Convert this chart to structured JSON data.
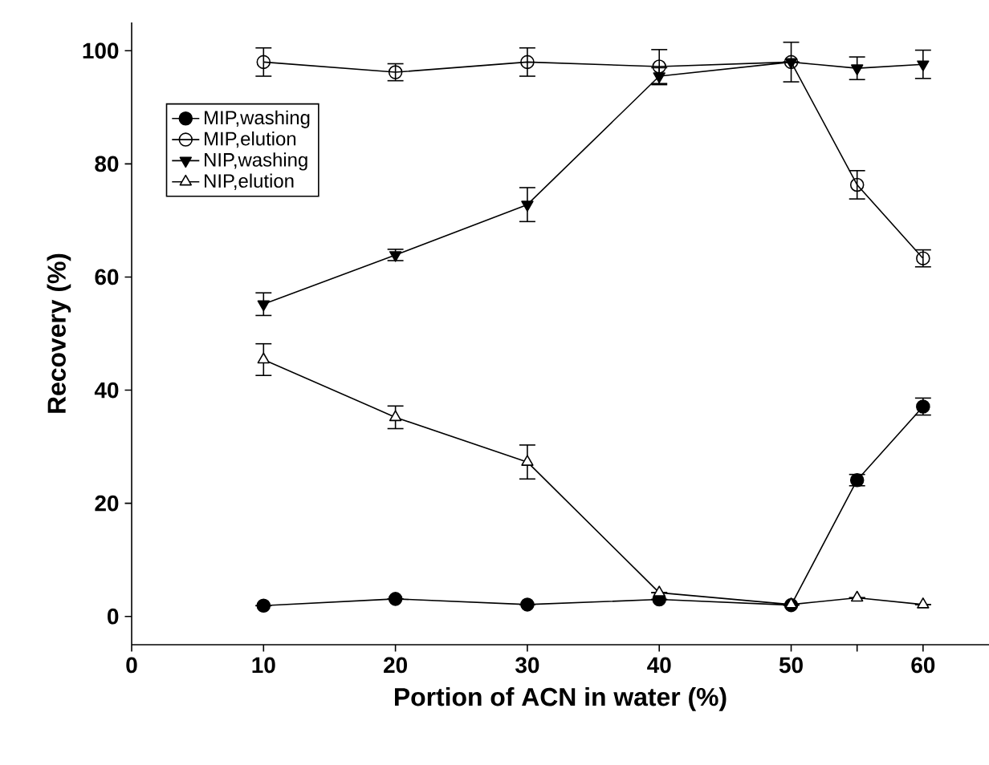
{
  "chart_data": {
    "type": "line",
    "xlabel": "Portion of ACN in water (%)",
    "ylabel": "Recovery (%)",
    "x": [
      10,
      20,
      30,
      40,
      50,
      55,
      60
    ],
    "series": [
      {
        "name": "MIP,washing",
        "color": "#000000",
        "marker": "circle",
        "values": [
          1.9,
          3.1,
          2.1,
          3,
          2,
          24.1,
          37.1
        ],
        "errors": [
          null,
          null,
          null,
          null,
          null,
          1,
          1.5
        ]
      },
      {
        "name": "MIP,elution",
        "color": "#000000",
        "marker": "circle",
        "values": [
          98,
          96.2,
          98,
          97.2,
          98,
          76.3,
          63.3
        ],
        "errors": [
          2.5,
          1.5,
          2.5,
          3,
          null,
          2.5,
          1.5
        ]
      },
      {
        "name": "NIP,washing",
        "color": "#000000",
        "marker": "triangle",
        "values": [
          55.2,
          63.9,
          72.8,
          95.5,
          98,
          96.9,
          97.6
        ],
        "errors": [
          2,
          1,
          3,
          1.5,
          3.5,
          2,
          2.5
        ]
      },
      {
        "name": "NIP,elution",
        "color": "#000000",
        "marker": "triangle",
        "values": [
          45.4,
          35.2,
          27.3,
          4.2,
          2.1,
          3.3,
          2.1
        ],
        "errors": [
          2.8,
          2,
          3,
          null,
          null,
          null,
          null
        ]
      }
    ],
    "xlim": [
      0,
      65
    ],
    "ylim": [
      -5,
      105
    ],
    "xticks": [
      0,
      10,
      20,
      30,
      40,
      50,
      {
        "value": 55,
        "label": null
      },
      60
    ],
    "yticks": [
      0,
      20,
      40,
      60,
      80,
      100
    ],
    "legend": "top left",
    "grid": false,
    "line_style": "solid"
  }
}
